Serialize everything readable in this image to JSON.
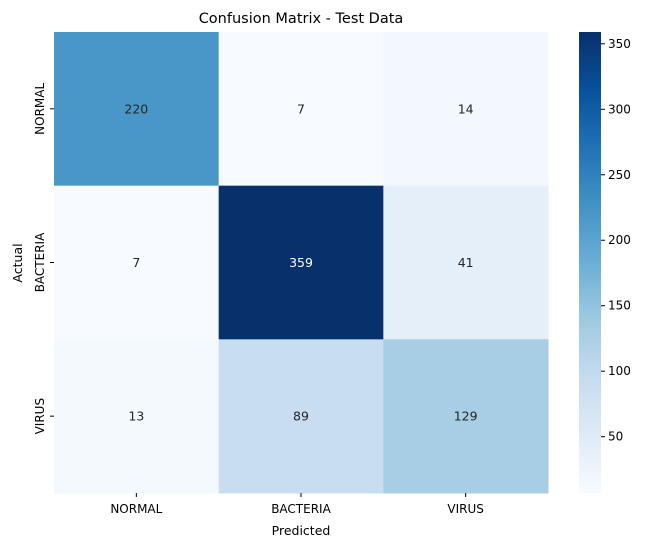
{
  "chart_data": {
    "type": "heatmap",
    "title": "Confusion Matrix - Test Data",
    "xlabel": "Predicted",
    "ylabel": "Actual",
    "x_categories": [
      "NORMAL",
      "BACTERIA",
      "VIRUS"
    ],
    "y_categories": [
      "NORMAL",
      "BACTERIA",
      "VIRUS"
    ],
    "values": [
      [
        220,
        7,
        14
      ],
      [
        7,
        359,
        41
      ],
      [
        13,
        89,
        129
      ]
    ],
    "value_range": [
      7,
      359
    ],
    "colormap": "Blues",
    "colorbar": {
      "ticks": [
        "50",
        "100",
        "150",
        "200",
        "250",
        "300",
        "350"
      ],
      "tick_values": [
        50,
        100,
        150,
        200,
        250,
        300,
        350
      ]
    },
    "grid": false,
    "annotations": true
  }
}
